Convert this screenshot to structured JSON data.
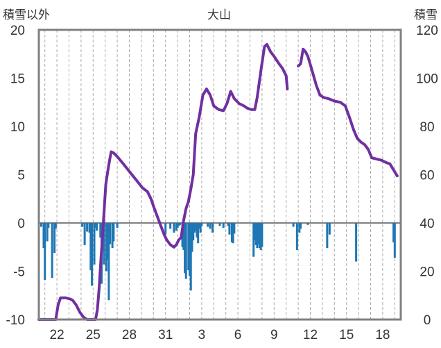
{
  "chart_data": {
    "type": "bar+line",
    "title": "大山",
    "left_axis_label": "積雪以外",
    "right_axis_label": "積雪",
    "left_axis": {
      "min": -10,
      "max": 20,
      "ticks": [
        "-10",
        "-5",
        "0",
        "5",
        "10",
        "15",
        "20"
      ]
    },
    "right_axis": {
      "min": 0,
      "max": 120,
      "ticks": [
        "0",
        "20",
        "40",
        "60",
        "80",
        "100",
        "120"
      ]
    },
    "x_range": [
      20,
      50
    ],
    "x_ticks": [
      {
        "x": 21.5,
        "label": "22"
      },
      {
        "x": 24.5,
        "label": "25"
      },
      {
        "x": 27.5,
        "label": "28"
      },
      {
        "x": 30.5,
        "label": "31"
      },
      {
        "x": 33.5,
        "label": "3"
      },
      {
        "x": 36.5,
        "label": "6"
      },
      {
        "x": 39.5,
        "label": "9"
      },
      {
        "x": 42.5,
        "label": "12"
      },
      {
        "x": 45.5,
        "label": "15"
      },
      {
        "x": 48.5,
        "label": "18"
      }
    ],
    "grid": "vertical dashed lines, one per day",
    "colors": {
      "bars": "#1f77b4",
      "line": "#7030a0",
      "frame": "#808080",
      "grid": "#aaaaaa"
    },
    "bars_series": {
      "axis": "left",
      "x": [
        20.2,
        20.4,
        20.5,
        20.7,
        20.8,
        21.1,
        21.3,
        21.4,
        23.6,
        23.8,
        24.0,
        24.2,
        24.3,
        24.4,
        24.6,
        24.7,
        24.8,
        25.1,
        25.2,
        25.3,
        25.4,
        25.6,
        25.7,
        25.8,
        25.9,
        26.1,
        26.2,
        26.5,
        30.5,
        30.9,
        31.2,
        31.4,
        31.5,
        31.6,
        31.7,
        31.9,
        32.0,
        32.1,
        32.2,
        32.4,
        32.5,
        32.6,
        32.7,
        32.8,
        32.9,
        33.0,
        33.1,
        33.2,
        33.3,
        33.4,
        33.5,
        34.0,
        34.2,
        34.4,
        35.0,
        35.3,
        35.7,
        35.8,
        36.0,
        36.1,
        36.2,
        37.8,
        37.9,
        38.0,
        38.1,
        38.2,
        38.3,
        38.4,
        38.5,
        41.1,
        41.4,
        41.6,
        41.7,
        42.3,
        43.9,
        44.1,
        46.3,
        49.4,
        49.5
      ],
      "values": [
        -0.4,
        -2.6,
        -5.9,
        -1.9,
        -0.5,
        -5.7,
        -3.1,
        -0.6,
        -0.4,
        -2.3,
        -0.9,
        -1.0,
        -4.9,
        -6.5,
        -4.3,
        -0.5,
        -0.8,
        -1.5,
        -6.3,
        -0.7,
        -4.3,
        -5.0,
        -3.8,
        -8.0,
        -2.2,
        -2.6,
        -1.9,
        -0.5,
        -1.2,
        -0.6,
        -1.0,
        -0.8,
        -0.5,
        -0.3,
        -0.2,
        -2.5,
        -2.8,
        -5.2,
        -5.8,
        -4.9,
        -5.5,
        -7.0,
        -3.0,
        -1.8,
        -1.0,
        -0.8,
        -1.5,
        -2.1,
        -0.6,
        -1.0,
        -0.3,
        -0.4,
        -0.6,
        -1.0,
        -0.3,
        -0.5,
        -0.3,
        -1.2,
        -2.0,
        -2.1,
        -1.1,
        -3.5,
        -1.8,
        -2.3,
        -2.6,
        -2.2,
        -2.6,
        -2.8,
        -2.5,
        -0.4,
        -2.8,
        -1.0,
        -0.6,
        -0.2,
        -2.6,
        -1.2,
        -4.0,
        -2.0,
        -3.6
      ]
    },
    "line_series": {
      "axis": "right",
      "segments": [
        {
          "x": [
            20.0,
            21.4,
            21.6,
            21.8,
            22.2,
            22.6,
            22.8,
            23.1,
            23.4,
            23.7,
            24.0,
            24.3,
            24.6,
            24.7,
            24.85,
            25.0,
            25.15,
            25.3,
            25.45,
            25.55,
            25.7,
            25.8,
            25.9,
            26.0,
            26.2,
            26.5,
            27.0,
            27.4,
            27.8,
            28.2,
            28.6,
            29.0,
            29.3,
            29.5,
            29.8,
            30.1,
            30.4,
            30.6,
            30.9,
            31.2,
            31.4,
            31.6,
            31.8,
            32.0,
            32.2,
            32.4,
            32.6,
            32.8,
            33.0,
            33.3,
            33.6,
            33.9,
            34.2,
            34.5,
            34.9,
            35.3,
            35.6,
            35.9,
            36.2,
            36.6,
            37.0,
            37.3,
            37.6,
            37.9,
            38.1,
            38.4,
            38.7,
            38.9,
            39.2,
            39.5,
            39.9,
            40.2,
            40.5,
            40.6
          ],
          "values": [
            0,
            0,
            6,
            9,
            9,
            8.5,
            8,
            6,
            3,
            1,
            0,
            0,
            0,
            0,
            4,
            13,
            25,
            36,
            48,
            56,
            61,
            64,
            67,
            69.5,
            69,
            67.5,
            64.5,
            62,
            59.5,
            57,
            54.5,
            53,
            50,
            47,
            43,
            39,
            35,
            33,
            31,
            30,
            31,
            33,
            34,
            41,
            46,
            49,
            54,
            60,
            77,
            84,
            93,
            95.5,
            93,
            88.5,
            87,
            86.5,
            89.5,
            94.5,
            91.5,
            89.5,
            88.5,
            87.5,
            87,
            87,
            92,
            103,
            113,
            114,
            111,
            109,
            106,
            104,
            101,
            95.5
          ]
        },
        {
          "x": [
            41.5,
            41.7,
            41.9,
            42.1,
            42.3,
            42.6,
            43.0,
            43.3,
            43.6,
            44.0,
            44.5,
            45.0,
            45.4,
            45.8,
            46.1,
            46.4,
            46.7,
            47.0,
            47.3,
            47.6,
            48.0,
            48.4,
            48.8,
            49.1,
            49.4,
            49.7
          ],
          "values": [
            105,
            106,
            112,
            111,
            109,
            104,
            97,
            93,
            92,
            91.5,
            90.5,
            90,
            88.5,
            83,
            78.5,
            75,
            73.5,
            72.5,
            70.5,
            67,
            66.5,
            66,
            65,
            64.5,
            62,
            59.5
          ]
        }
      ]
    }
  }
}
